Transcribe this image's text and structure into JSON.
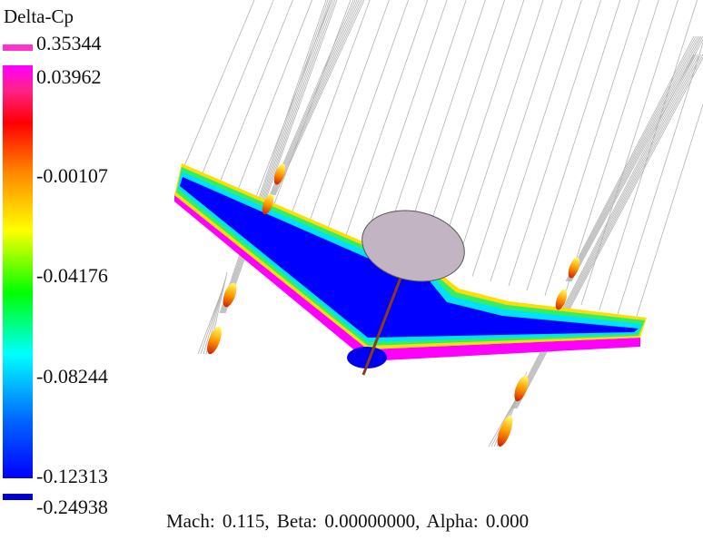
{
  "legend": {
    "title": "Delta-Cp",
    "max_value": "0.35344",
    "ticks": [
      "0.03962",
      "-0.00107",
      "-0.04176",
      "-0.08244",
      "-0.12313"
    ],
    "min_value": "-0.24938",
    "max_color": "#ff33cc",
    "min_color": "#0000cc",
    "gradient_colors": [
      "#ff00ff",
      "#ff0000",
      "#ff8800",
      "#ffff00",
      "#00ff00",
      "#00ffff",
      "#0000ff"
    ]
  },
  "status": {
    "text": "Mach:  0.115,  Beta:  0.00000000,  Alpha:  0.000"
  },
  "colors": {
    "wing_base": "#0000ff",
    "wing_leading_edge": "#ff00ff",
    "wing_trailing_edge": "#ffdd00",
    "disk": "#c2b4c2",
    "streamline": "#9a9a9a"
  }
}
